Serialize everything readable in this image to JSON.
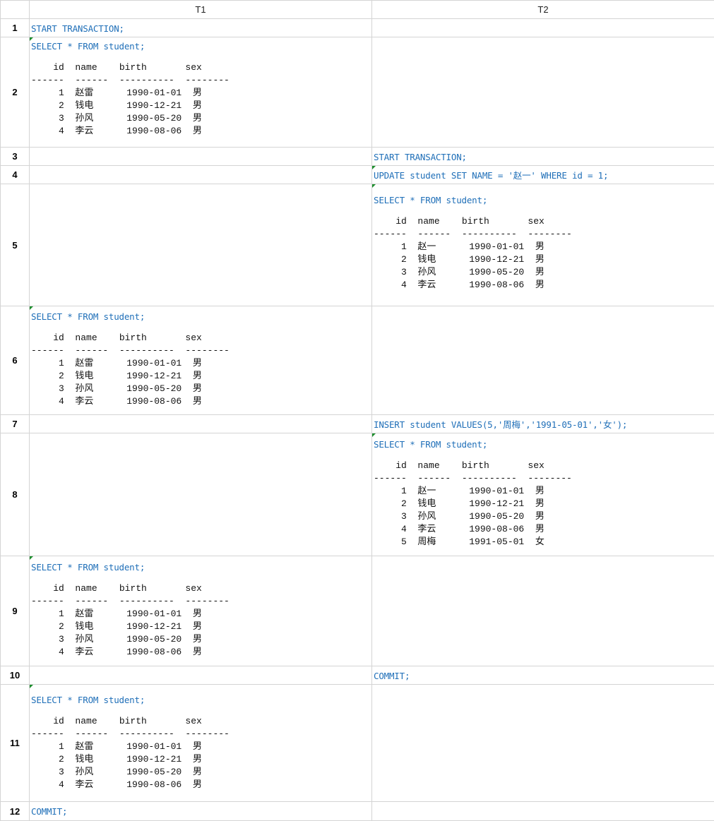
{
  "columns": [
    "T1",
    "T2"
  ],
  "rows": [
    {
      "num": "1",
      "t1": {
        "sql": "START TRANSACTION;"
      },
      "t2": null
    },
    {
      "num": "2",
      "t1": {
        "sql": "SELECT * FROM student;",
        "result": "    id  name    birth       sex\n------  ------  ----------  --------\n     1  赵雷      1990-01-01  男\n     2  钱电      1990-12-21  男\n     3  孙风      1990-05-20  男\n     4  李云      1990-08-06  男"
      },
      "t2": null
    },
    {
      "num": "3",
      "t1": null,
      "t2": {
        "sql": "START TRANSACTION;"
      }
    },
    {
      "num": "4",
      "t1": null,
      "t2": {
        "sql": "UPDATE student SET NAME = '赵一' WHERE id = 1;"
      }
    },
    {
      "num": "5",
      "t1": null,
      "t2": {
        "sql": "SELECT * FROM student;",
        "result": "    id  name    birth       sex\n------  ------  ----------  --------\n     1  赵一      1990-01-01  男\n     2  钱电      1990-12-21  男\n     3  孙风      1990-05-20  男\n     4  李云      1990-08-06  男"
      }
    },
    {
      "num": "6",
      "t1": {
        "sql": "SELECT * FROM student;",
        "result": "    id  name    birth       sex\n------  ------  ----------  --------\n     1  赵雷      1990-01-01  男\n     2  钱电      1990-12-21  男\n     3  孙风      1990-05-20  男\n     4  李云      1990-08-06  男"
      },
      "t2": null
    },
    {
      "num": "7",
      "t1": null,
      "t2": {
        "sql": "INSERT student VALUES(5,'周梅','1991-05-01','女');"
      }
    },
    {
      "num": "8",
      "t1": null,
      "t2": {
        "sql": "SELECT * FROM student;",
        "result": "    id  name    birth       sex\n------  ------  ----------  --------\n     1  赵一      1990-01-01  男\n     2  钱电      1990-12-21  男\n     3  孙风      1990-05-20  男\n     4  李云      1990-08-06  男\n     5  周梅      1991-05-01  女"
      }
    },
    {
      "num": "9",
      "t1": {
        "sql": "SELECT * FROM student;",
        "result": "    id  name    birth       sex\n------  ------  ----------  --------\n     1  赵雷      1990-01-01  男\n     2  钱电      1990-12-21  男\n     3  孙风      1990-05-20  男\n     4  李云      1990-08-06  男"
      },
      "t2": null
    },
    {
      "num": "10",
      "t1": null,
      "t2": {
        "sql": "COMMIT;"
      }
    },
    {
      "num": "11",
      "t1": {
        "sql": "SELECT * FROM student;",
        "result": "    id  name    birth       sex\n------  ------  ----------  --------\n     1  赵雷      1990-01-01  男\n     2  钱电      1990-12-21  男\n     3  孙风      1990-05-20  男\n     4  李云      1990-08-06  男"
      },
      "t2": null
    },
    {
      "num": "12",
      "t1": {
        "sql": "COMMIT;"
      },
      "t2": null
    }
  ]
}
